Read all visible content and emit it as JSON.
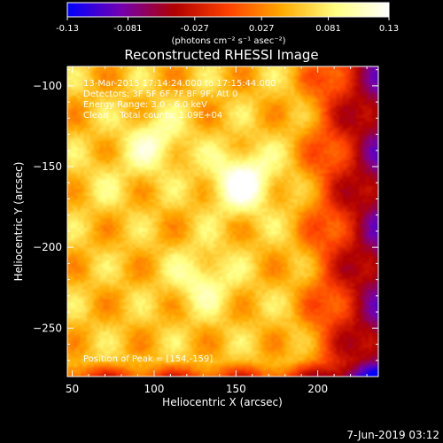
{
  "chart_data": {
    "type": "heatmap",
    "title": "Reconstructed RHESSI Image",
    "xlabel": "Heliocentric X (arcsec)",
    "ylabel": "Heliocentric Y (arcsec)",
    "xlim": [
      47,
      237
    ],
    "ylim": [
      -280,
      -88
    ],
    "x_ticks": [
      50,
      100,
      150,
      200
    ],
    "y_ticks": [
      -100,
      -150,
      -200,
      -250
    ],
    "colorbar": {
      "min": -0.13,
      "max": 0.13,
      "ticks": [
        "-0.13",
        "-0.081",
        "-0.027",
        "0.027",
        "0.081",
        "0.13"
      ],
      "tick_values": [
        -0.13,
        -0.081,
        -0.027,
        0.027,
        0.081,
        0.13
      ],
      "unit_label": "(photons cm⁻² s⁻¹ asec⁻²)",
      "colortable": [
        "#0000ff",
        "#7300b0",
        "#b00000",
        "#ff4000",
        "#ffaa00",
        "#ffff80",
        "#ffffff"
      ]
    },
    "annotations": [
      "13-Mar-2015 17:14:24.000 to 17:15:44.000",
      "Detectors: 3F 5F 6F 7F 8F 9F, Att 0",
      "Energy Range: 3.0 - 6.0 keV",
      "Clean    Total counts: 1.09E+04"
    ],
    "peak_label": "Position of Peak = [154,-159]",
    "peak": [
      154,
      -159
    ],
    "sources": [
      {
        "x": 154,
        "y": -159,
        "peak": 0.13
      },
      {
        "x": 100,
        "y": -135,
        "peak": 0.1
      },
      {
        "x": 130,
        "y": -220,
        "peak": 0.095
      },
      {
        "x": 70,
        "y": -160,
        "peak": 0.065
      }
    ],
    "background": "#000000",
    "foreground": "#ffffff"
  },
  "footer": {
    "date_label": "7-Jun-2019 03:12"
  }
}
